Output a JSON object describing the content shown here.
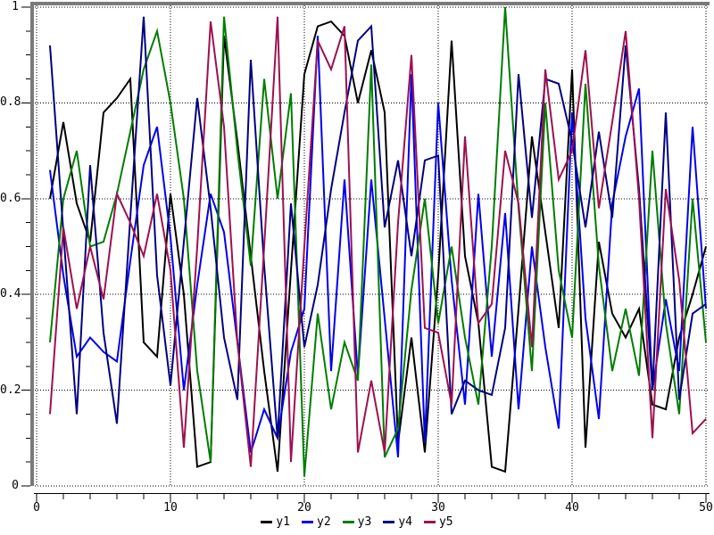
{
  "chart_data": {
    "type": "line",
    "title": "",
    "xlabel": "",
    "ylabel": "",
    "xlim": [
      0,
      50
    ],
    "ylim": [
      0,
      1
    ],
    "x_major_ticks": [
      0,
      10,
      20,
      30,
      40,
      50
    ],
    "x_tick_labels": [
      "0",
      "10",
      "20",
      "30",
      "40",
      "50"
    ],
    "x_minor_step": 2,
    "y_major_ticks": [
      0,
      0.2,
      0.4,
      0.6,
      0.8,
      1
    ],
    "y_tick_labels": [
      "0",
      "0.2",
      "0.4",
      "0.6",
      "0.8",
      "1"
    ],
    "y_minor_step": 0.05,
    "grid": "dotted-major",
    "legend_position": "bottom-center",
    "frame_color": "#7a7a7a",
    "grid_color": "#000000",
    "x": [
      1,
      2,
      3,
      4,
      5,
      6,
      7,
      8,
      9,
      10,
      11,
      12,
      13,
      14,
      15,
      16,
      17,
      18,
      19,
      20,
      21,
      22,
      23,
      24,
      25,
      26,
      27,
      28,
      29,
      30,
      31,
      32,
      33,
      34,
      35,
      36,
      37,
      38,
      39,
      40,
      41,
      42,
      43,
      44,
      45,
      46,
      47,
      48,
      49,
      50
    ],
    "series": [
      {
        "name": "y1",
        "color": "#000000",
        "values": [
          0.6,
          0.76,
          0.59,
          0.51,
          0.78,
          0.81,
          0.85,
          0.3,
          0.27,
          0.61,
          0.4,
          0.04,
          0.05,
          0.94,
          0.72,
          0.48,
          0.24,
          0.03,
          0.45,
          0.86,
          0.96,
          0.97,
          0.94,
          0.8,
          0.91,
          0.78,
          0.09,
          0.31,
          0.07,
          0.44,
          0.93,
          0.48,
          0.34,
          0.04,
          0.03,
          0.37,
          0.73,
          0.53,
          0.33,
          0.87,
          0.08,
          0.51,
          0.36,
          0.31,
          0.37,
          0.17,
          0.16,
          0.31,
          0.4,
          0.5
        ]
      },
      {
        "name": "y2",
        "color": "#0000ee",
        "values": [
          0.66,
          0.44,
          0.27,
          0.31,
          0.28,
          0.26,
          0.47,
          0.67,
          0.75,
          0.52,
          0.2,
          0.42,
          0.61,
          0.53,
          0.3,
          0.07,
          0.16,
          0.1,
          0.28,
          0.37,
          0.94,
          0.24,
          0.64,
          0.23,
          0.64,
          0.35,
          0.06,
          0.86,
          0.09,
          0.8,
          0.43,
          0.17,
          0.61,
          0.27,
          0.57,
          0.16,
          0.5,
          0.29,
          0.12,
          0.78,
          0.35,
          0.14,
          0.59,
          0.73,
          0.83,
          0.2,
          0.39,
          0.24,
          0.75,
          0.37
        ]
      },
      {
        "name": "y3",
        "color": "#007d00",
        "values": [
          0.3,
          0.6,
          0.7,
          0.5,
          0.51,
          0.61,
          0.74,
          0.87,
          0.95,
          0.8,
          0.6,
          0.24,
          0.05,
          0.98,
          0.7,
          0.46,
          0.85,
          0.6,
          0.82,
          0.02,
          0.36,
          0.16,
          0.3,
          0.22,
          0.88,
          0.06,
          0.12,
          0.41,
          0.6,
          0.34,
          0.5,
          0.31,
          0.17,
          0.5,
          1.0,
          0.58,
          0.24,
          0.8,
          0.45,
          0.31,
          0.84,
          0.46,
          0.24,
          0.37,
          0.23,
          0.7,
          0.34,
          0.15,
          0.6,
          0.3
        ]
      },
      {
        "name": "y4",
        "color": "#000080",
        "values": [
          0.92,
          0.53,
          0.15,
          0.67,
          0.32,
          0.13,
          0.56,
          0.98,
          0.44,
          0.21,
          0.51,
          0.81,
          0.58,
          0.31,
          0.18,
          0.89,
          0.46,
          0.1,
          0.59,
          0.29,
          0.42,
          0.62,
          0.78,
          0.93,
          0.96,
          0.54,
          0.68,
          0.48,
          0.68,
          0.69,
          0.15,
          0.22,
          0.2,
          0.19,
          0.33,
          0.86,
          0.56,
          0.85,
          0.84,
          0.72,
          0.54,
          0.74,
          0.56,
          0.92,
          0.62,
          0.2,
          0.78,
          0.18,
          0.36,
          0.38
        ]
      },
      {
        "name": "y5",
        "color": "#9c1150",
        "values": [
          0.15,
          0.54,
          0.37,
          0.5,
          0.39,
          0.61,
          0.55,
          0.48,
          0.61,
          0.45,
          0.08,
          0.5,
          0.97,
          0.75,
          0.3,
          0.04,
          0.5,
          0.98,
          0.05,
          0.5,
          0.93,
          0.87,
          0.96,
          0.07,
          0.22,
          0.07,
          0.55,
          0.9,
          0.33,
          0.32,
          0.17,
          0.73,
          0.34,
          0.38,
          0.7,
          0.59,
          0.29,
          0.87,
          0.64,
          0.7,
          0.91,
          0.58,
          0.76,
          0.95,
          0.6,
          0.1,
          0.62,
          0.43,
          0.11,
          0.14
        ]
      }
    ]
  }
}
